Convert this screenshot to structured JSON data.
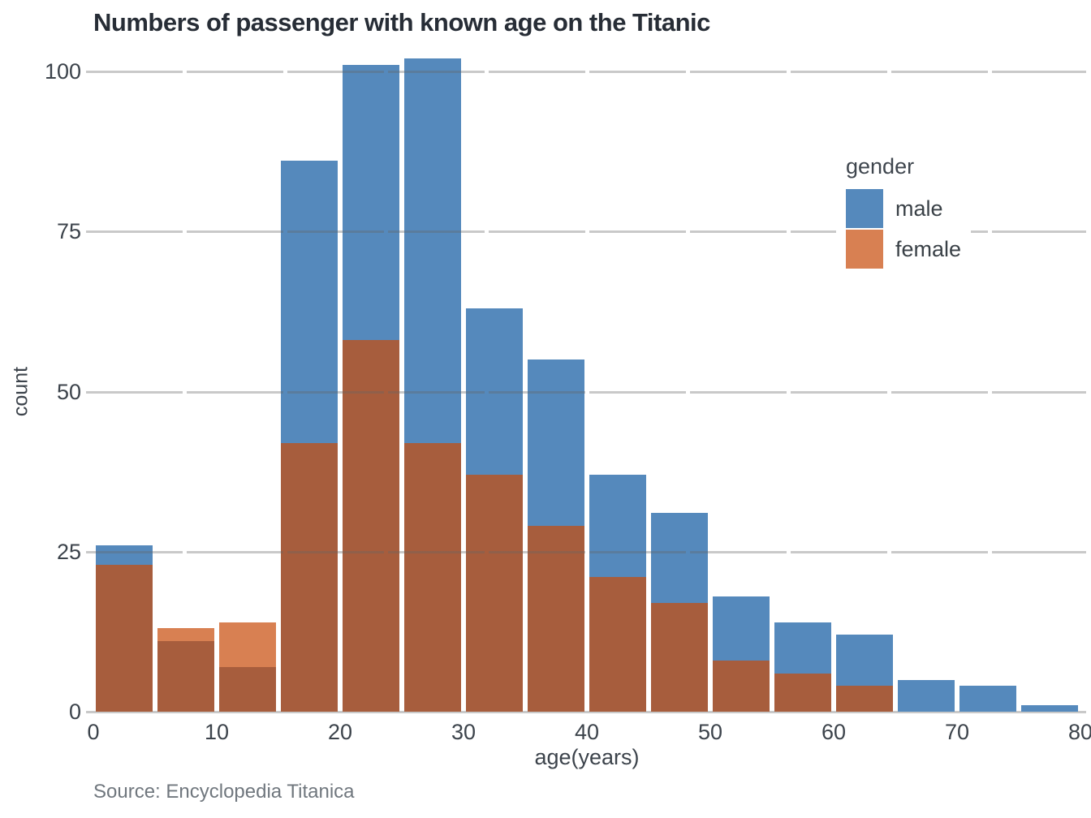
{
  "title": "Numbers of passenger with known age on the Titanic",
  "source": "Source: Encyclopedia Titanica",
  "chart_data": {
    "type": "bar",
    "subtype": "overlaid-histogram",
    "title": "Numbers of passenger with known age on the Titanic",
    "xlabel": "age(years)",
    "ylabel": "count",
    "xlim": [
      0,
      80
    ],
    "ylim": [
      0,
      105
    ],
    "bin_width": 5,
    "bin_starts": [
      0,
      5,
      10,
      15,
      20,
      25,
      30,
      35,
      40,
      45,
      50,
      55,
      60,
      65,
      70,
      75
    ],
    "categories": [
      "0-5",
      "5-10",
      "10-15",
      "15-20",
      "20-25",
      "25-30",
      "30-35",
      "35-40",
      "40-45",
      "45-50",
      "50-55",
      "55-60",
      "60-65",
      "65-70",
      "70-75",
      "75-80"
    ],
    "series": [
      {
        "name": "male",
        "color": "#5589BC",
        "values": [
          26,
          11,
          7,
          86,
          101,
          102,
          63,
          55,
          37,
          31,
          18,
          14,
          12,
          5,
          4,
          1
        ]
      },
      {
        "name": "female",
        "color": "#D88052",
        "values": [
          23,
          13,
          14,
          42,
          58,
          42,
          37,
          29,
          21,
          17,
          8,
          6,
          4,
          0,
          0,
          0
        ]
      }
    ],
    "overlap_color": "#A75D3D",
    "x_ticks": [
      0,
      10,
      20,
      30,
      40,
      50,
      60,
      70,
      80
    ],
    "y_ticks": [
      0,
      25,
      50,
      75,
      100
    ],
    "grid": "horizontal",
    "legend": {
      "title": "gender",
      "entries": [
        "male",
        "female"
      ],
      "position": "inside-right"
    },
    "source_note": "Source: Encyclopedia Titanica"
  }
}
